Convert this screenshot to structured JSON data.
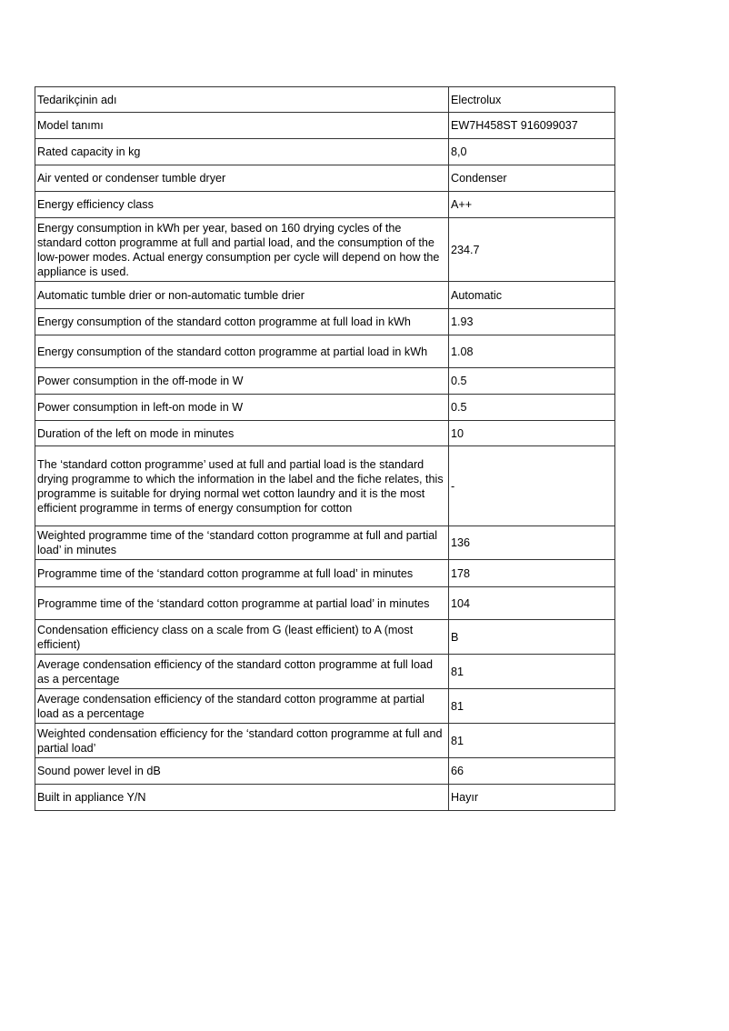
{
  "rows": [
    {
      "label": "Tedarikçinin adı",
      "value": "Electrolux"
    },
    {
      "label": "Model tanımı",
      "value": "EW7H458ST 916099037"
    },
    {
      "label": "Rated capacity in kg",
      "value": "8,0"
    },
    {
      "label": "Air vented or condenser tumble dryer",
      "value": "Condenser"
    },
    {
      "label": "Energy efficiency class",
      "value": "A++"
    },
    {
      "label": "Energy consumption in kWh per year, based on 160 drying cycles of the standard cotton programme at full and partial load, and the consumption of the low-power modes. Actual energy consumption per cycle will depend on how the appliance is used.",
      "value": "234.7"
    },
    {
      "label": "Automatic tumble drier or non-automatic tumble drier",
      "value": "Automatic"
    },
    {
      "label": "Energy consumption of the standard cotton programme at full load in kWh",
      "value": "1.93"
    },
    {
      "label": "Energy consumption of the standard cotton programme at partial load in kWh",
      "value": "1.08"
    },
    {
      "label": "Power consumption in the off-mode in W",
      "value": "0.5"
    },
    {
      "label": "Power consumption in left-on mode in W",
      "value": "0.5"
    },
    {
      "label": "Duration of the left on mode in minutes",
      "value": "10"
    },
    {
      "label": "The ‘standard cotton programme’ used at full and partial load is the standard drying programme to which the information in the label and the fiche relates, this programme is suitable for drying normal wet cotton laundry and it is the most efficient programme in terms of energy consumption for cotton",
      "value": "-"
    },
    {
      "label": "Weighted programme time of the ‘standard cotton programme at full and partial load’ in minutes",
      "value": "136"
    },
    {
      "label": "Programme time of the ‘standard cotton programme at full load’ in minutes",
      "value": "178"
    },
    {
      "label": "Programme time of the ‘standard cotton programme at partial load’ in minutes",
      "value": "104"
    },
    {
      "label": "Condensation efficiency class on a scale from G (least efficient) to A (most efficient)",
      "value": "B"
    },
    {
      "label": "Average condensation efficiency of the standard cotton programme at full load as a percentage",
      "value": "81"
    },
    {
      "label": "Average condensation efficiency of the standard cotton programme at partial load as a percentage",
      "value": "81"
    },
    {
      "label": "Weighted condensation efficiency for the ‘standard cotton programme at full and partial load’",
      "value": "81"
    },
    {
      "label": "Sound power level in dB",
      "value": "66"
    },
    {
      "label": "Built in appliance Y/N",
      "value": "Hayır"
    }
  ]
}
